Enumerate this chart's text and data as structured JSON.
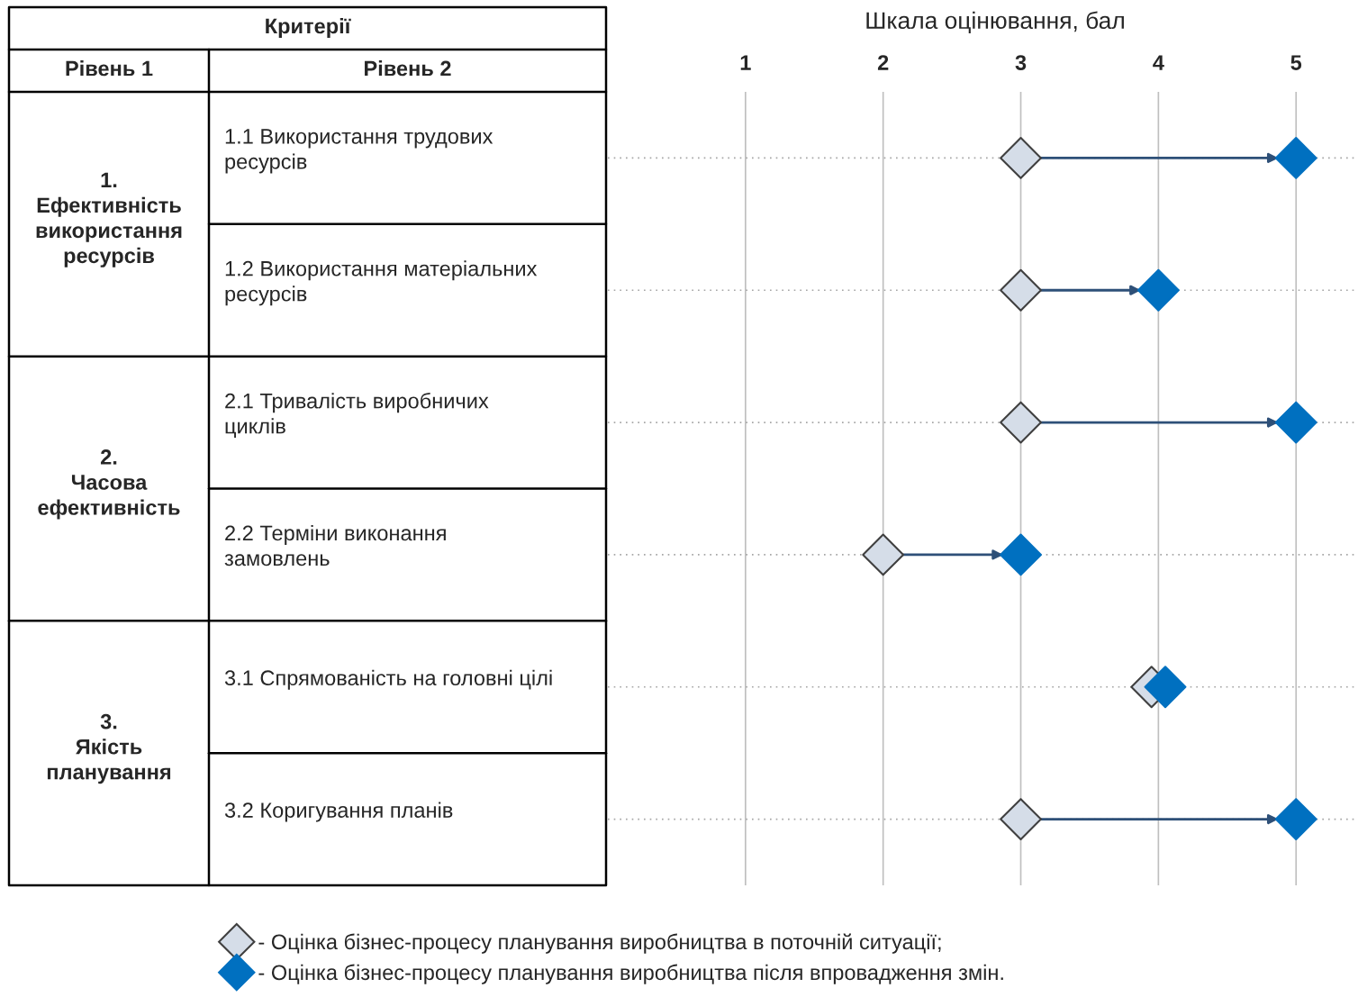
{
  "chart_data": {
    "type": "scatter",
    "orientation": "horizontal",
    "xlabel": "Шкала оцінювання, бал",
    "categories": [
      "1.1 Використання трудових\nресурсів",
      "1.2 Використання матеріальних\nресурсів",
      "2.1 Тривалість виробничих\nциклів",
      "2.2 Терміни виконання\nзамовлень",
      "3.1 Спрямованість на головні цілі",
      "3.2 Коригування планів"
    ],
    "series": [
      {
        "name": "- Оцінка бізнес-процесу планування виробництва в поточній ситуації;",
        "color": "#d5dde8",
        "values": [
          3,
          3,
          3,
          2,
          3.95,
          3
        ]
      },
      {
        "name": "- Оцінка бізнес-процесу планування виробництва після впровадження змін.",
        "color": "#0070c0",
        "values": [
          5,
          4,
          5,
          3,
          4.05,
          5
        ]
      }
    ],
    "xlim": [
      0,
      5.45
    ],
    "xticks": [
      1,
      2,
      3,
      4,
      5
    ],
    "grid": true,
    "legend": "bottom",
    "marker": "diamond",
    "annotations": [
      "Критерії",
      "Рівень 1",
      "Рівень 2",
      "1.\nЕфективність\nвикористання\nресурсів",
      "2.\nЧасова\nефективність",
      "3.\nЯкість\nпланування"
    ]
  }
}
